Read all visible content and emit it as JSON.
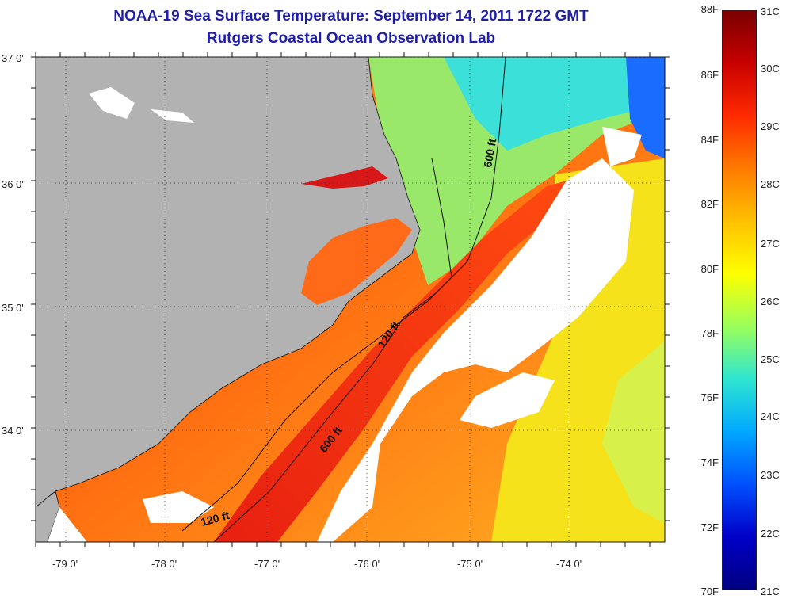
{
  "header": {
    "title": "NOAA-19 Sea Surface Temperature:  September 14, 2011 1722 GMT",
    "subtitle": "Rutgers Coastal Ocean Observation Lab"
  },
  "map": {
    "lat_labels": [
      "37 0'",
      "36 0'",
      "35 0'",
      "34 0'"
    ],
    "lon_labels": [
      "-79 0'",
      "-78 0'",
      "-77 0'",
      "-76 0'",
      "-75 0'",
      "-74 0'"
    ],
    "contour_labels": [
      "600 ft",
      "120 ft",
      "600 ft",
      "120 ft"
    ]
  },
  "colorbar": {
    "f_labels": [
      "88F",
      "86F",
      "84F",
      "82F",
      "80F",
      "78F",
      "76F",
      "74F",
      "72F",
      "70F"
    ],
    "c_labels": [
      "31C",
      "30C",
      "29C",
      "28C",
      "27C",
      "26C",
      "25C",
      "24C",
      "23C",
      "22C",
      "21C"
    ],
    "colors": [
      "#7a0000",
      "#c80000",
      "#ff2a00",
      "#ff7a00",
      "#ffc000",
      "#ffff00",
      "#9bff5a",
      "#2ee6d0",
      "#00a8ff",
      "#0050ff",
      "#0000c8",
      "#000080"
    ]
  }
}
